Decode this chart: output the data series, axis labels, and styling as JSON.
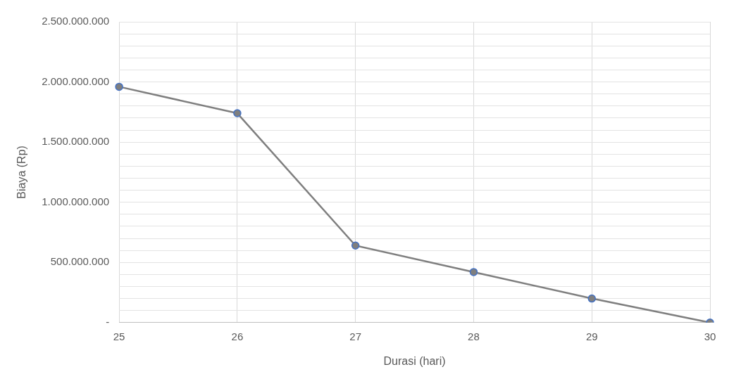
{
  "chart_data": {
    "type": "line",
    "xlabel": "Durasi (hari)",
    "ylabel": "Biaya (Rp)",
    "categories": [
      "25",
      "26",
      "27",
      "28",
      "29",
      "30"
    ],
    "series": [
      {
        "color": "#7f7f7f",
        "values": [
          1960000000,
          1740000000,
          640000000,
          420000000,
          200000000,
          0
        ]
      }
    ],
    "ylim": [
      0,
      2500000000
    ],
    "yticks": [
      {
        "value": 0,
        "label": "-"
      },
      {
        "value": 100000000,
        "label": null
      },
      {
        "value": 200000000,
        "label": null
      },
      {
        "value": 300000000,
        "label": null
      },
      {
        "value": 400000000,
        "label": null
      },
      {
        "value": 500000000,
        "label": "500.000.000"
      },
      {
        "value": 600000000,
        "label": null
      },
      {
        "value": 700000000,
        "label": null
      },
      {
        "value": 800000000,
        "label": null
      },
      {
        "value": 900000000,
        "label": null
      },
      {
        "value": 1000000000,
        "label": "1.000.000.000"
      },
      {
        "value": 1100000000,
        "label": null
      },
      {
        "value": 1200000000,
        "label": null
      },
      {
        "value": 1300000000,
        "label": null
      },
      {
        "value": 1400000000,
        "label": null
      },
      {
        "value": 1500000000,
        "label": "1.500.000.000"
      },
      {
        "value": 1600000000,
        "label": null
      },
      {
        "value": 1700000000,
        "label": null
      },
      {
        "value": 1800000000,
        "label": null
      },
      {
        "value": 1900000000,
        "label": null
      },
      {
        "value": 2000000000,
        "label": "2.000.000.000"
      },
      {
        "value": 2100000000,
        "label": null
      },
      {
        "value": 2200000000,
        "label": null
      },
      {
        "value": 2300000000,
        "label": null
      },
      {
        "value": 2400000000,
        "label": null
      },
      {
        "value": 2500000000,
        "label": "2.500.000.000"
      }
    ],
    "grid": true,
    "legend": false,
    "marker": "circle",
    "line_style": "solid"
  }
}
